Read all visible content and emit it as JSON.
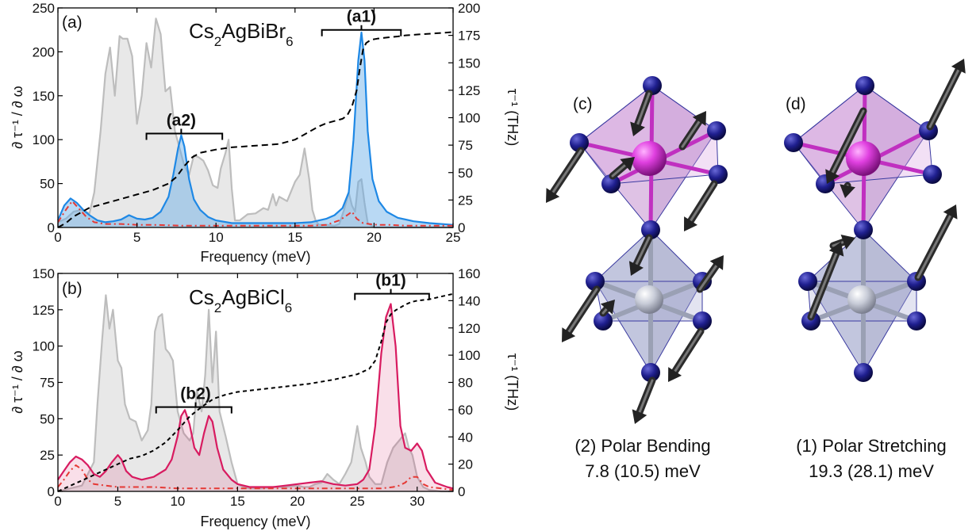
{
  "chart_data": [
    {
      "type": "area",
      "panel_label": "(a)",
      "title_base": "Cs",
      "title_sub1": "2",
      "title_mid": "AgBiBr",
      "title_sub2": "6",
      "xlabel": "Frequency (meV)",
      "ylabel_left": "∂ τ⁻¹ / ∂ ω",
      "ylabel_right": "τ⁻¹ (THz)",
      "xlim": [
        0,
        25
      ],
      "ylim_left": [
        0,
        250
      ],
      "ylim_right": [
        0,
        200
      ],
      "x_ticks": [
        "0",
        "5",
        "10",
        "15",
        "20",
        "25"
      ],
      "y_ticks_left": [
        "0",
        "50",
        "100",
        "150",
        "200",
        "250"
      ],
      "y_ticks_right": [
        "0",
        "25",
        "50",
        "75",
        "100",
        "125",
        "150",
        "175",
        "200"
      ],
      "annotations": [
        {
          "text": "(a1)",
          "range": [
            16.7,
            21.7
          ],
          "center": 19.2,
          "y": 225
        },
        {
          "text": "(a2)",
          "range": [
            5.6,
            10.4
          ],
          "center": 7.8,
          "y": 107
        }
      ],
      "series": [
        {
          "color": "#bdbdbd",
          "fill": "#e8e8e8",
          "x": [
            0,
            0.5,
            1.0,
            1.5,
            2.0,
            2.3,
            2.7,
            3.0,
            3.3,
            3.6,
            3.9,
            4.1,
            4.4,
            4.7,
            5.0,
            5.3,
            5.6,
            5.9,
            6.2,
            6.5,
            6.8,
            7.1,
            7.4,
            7.7,
            8.0,
            8.3,
            8.6,
            8.9,
            9.2,
            9.5,
            9.8,
            10.1,
            10.3,
            10.6,
            10.8,
            11.0,
            11.2,
            11.5,
            12.0,
            12.5,
            13.0,
            13.3,
            13.6,
            13.8,
            14.0,
            14.5,
            15.0,
            15.3,
            15.6,
            15.9,
            16.1,
            16.3,
            16.5,
            17.0,
            17.5,
            17.8,
            18.1,
            18.4,
            18.6,
            18.8,
            19.0,
            19.2,
            19.4,
            19.6,
            20.0,
            21.0,
            22,
            23,
            24,
            25
          ],
          "values": [
            6,
            10,
            18,
            20,
            16,
            40,
            110,
            175,
            205,
            150,
            218,
            215,
            215,
            195,
            118,
            150,
            210,
            182,
            238,
            220,
            155,
            160,
            110,
            90,
            70,
            60,
            82,
            80,
            76,
            65,
            48,
            45,
            67,
            85,
            100,
            44,
            8,
            8,
            15,
            16,
            22,
            20,
            38,
            25,
            35,
            30,
            52,
            60,
            90,
            55,
            20,
            8,
            3,
            3,
            2,
            4,
            20,
            40,
            25,
            18,
            52,
            55,
            28,
            5,
            0,
            0,
            0,
            0,
            0,
            0
          ]
        },
        {
          "color": "#1e88e5",
          "fill": "rgba(100,170,230,0.45)",
          "x": [
            0,
            0.4,
            0.8,
            1.2,
            1.6,
            2.0,
            2.5,
            3.0,
            3.5,
            4.0,
            4.5,
            5.0,
            5.5,
            6.0,
            6.5,
            7.0,
            7.3,
            7.6,
            7.8,
            8.0,
            8.3,
            8.6,
            9.0,
            9.5,
            10,
            11,
            12,
            13,
            14,
            15,
            16,
            17,
            17.5,
            18.0,
            18.4,
            18.7,
            19.0,
            19.2,
            19.4,
            19.6,
            19.9,
            20.3,
            20.8,
            21.5,
            22.5,
            23.5,
            25
          ],
          "values": [
            8,
            25,
            33,
            28,
            20,
            14,
            8,
            6,
            7,
            9,
            14,
            10,
            9,
            11,
            18,
            35,
            60,
            90,
            105,
            92,
            55,
            32,
            20,
            12,
            8,
            5,
            5,
            5,
            5,
            5,
            6,
            10,
            14,
            22,
            40,
            100,
            190,
            222,
            190,
            110,
            55,
            30,
            18,
            11,
            7,
            5,
            3
          ]
        },
        {
          "color": "#e53935",
          "dash": "7,4,2,4",
          "x": [
            0,
            0.5,
            0.9,
            1.3,
            1.8,
            2.3,
            3,
            4,
            5,
            6,
            8,
            10,
            12,
            14,
            16,
            17,
            17.8,
            18.3,
            18.6,
            18.9,
            19.3,
            19.7,
            20.2,
            21,
            22,
            25
          ],
          "values": [
            6,
            20,
            30,
            22,
            12,
            6,
            4,
            4,
            3,
            3,
            2,
            2,
            2,
            2,
            2,
            3,
            8,
            14,
            18,
            10,
            5,
            4,
            3,
            3,
            2,
            2
          ]
        },
        {
          "color": "#000000",
          "dash": "8,5",
          "axis": "right",
          "x": [
            0,
            0.5,
            1.0,
            1.5,
            2.0,
            3,
            4,
            5,
            6,
            7,
            7.5,
            8,
            8.5,
            9,
            10,
            11,
            12,
            13,
            14,
            15,
            15.5,
            16,
            16.5,
            17,
            17.5,
            18,
            18.3,
            18.6,
            18.9,
            19.1,
            19.3,
            19.5,
            19.8,
            20.2,
            20.8,
            21.5,
            22,
            23,
            24,
            25
          ],
          "values": [
            0,
            4,
            10,
            14,
            18,
            22,
            26,
            30,
            34,
            40,
            46,
            56,
            64,
            68,
            71,
            73,
            74,
            75,
            76,
            80,
            84,
            88,
            92,
            95,
            97,
            99,
            102,
            110,
            125,
            145,
            162,
            168,
            171,
            172,
            173,
            174,
            175,
            176,
            177,
            178
          ]
        }
      ]
    },
    {
      "type": "area",
      "panel_label": "(b)",
      "title_base": "Cs",
      "title_sub1": "2",
      "title_mid": "AgBiCl",
      "title_sub2": "6",
      "xlabel": "Frequency (meV)",
      "ylabel_left": "∂ τ⁻¹ / ∂ ω",
      "ylabel_right": "τ⁻¹ (THz)",
      "xlim": [
        0,
        33
      ],
      "ylim_left": [
        0,
        150
      ],
      "ylim_right": [
        0,
        160
      ],
      "x_ticks": [
        "0",
        "5",
        "10",
        "15",
        "20",
        "25",
        "30"
      ],
      "y_ticks_left": [
        "0",
        "25",
        "50",
        "75",
        "100",
        "125",
        "150"
      ],
      "y_ticks_right": [
        "0",
        "20",
        "40",
        "60",
        "80",
        "100",
        "120",
        "140",
        "160"
      ],
      "annotations": [
        {
          "text": "(b1)",
          "range": [
            24.8,
            31.0
          ],
          "center": 27.8,
          "y": 136
        },
        {
          "text": "(b2)",
          "range": [
            8.2,
            14.5
          ],
          "center": 11.5,
          "y": 58
        }
      ],
      "series": [
        {
          "color": "#bdbdbd",
          "fill": "#e8e8e8",
          "x": [
            0,
            1,
            2,
            3,
            3.3,
            3.7,
            4.0,
            4.3,
            4.6,
            5.0,
            5.3,
            5.6,
            6.0,
            6.5,
            7.0,
            7.5,
            7.8,
            8.1,
            8.4,
            8.7,
            9.0,
            9.3,
            9.6,
            10,
            10.5,
            11,
            11.3,
            11.6,
            12,
            12.3,
            12.6,
            12.9,
            13.2,
            13.5,
            14,
            14.5,
            15,
            15.5,
            16,
            17,
            18,
            19,
            20,
            20.5,
            21,
            21.5,
            22,
            22.5,
            23,
            23.5,
            24,
            24.5,
            25,
            25.3,
            25.7,
            26,
            26.5,
            27,
            27.5,
            28,
            28.5,
            29,
            29.3,
            29.6,
            30,
            30.5,
            31,
            32,
            33
          ],
          "values": [
            0,
            2,
            4,
            20,
            60,
            105,
            135,
            112,
            125,
            90,
            85,
            60,
            50,
            48,
            35,
            42,
            60,
            110,
            120,
            122,
            98,
            95,
            90,
            55,
            40,
            35,
            40,
            70,
            55,
            80,
            125,
            75,
            110,
            55,
            38,
            20,
            5,
            3,
            2,
            2,
            3,
            3,
            4,
            3,
            3,
            5,
            6,
            12,
            8,
            5,
            12,
            20,
            45,
            30,
            20,
            10,
            5,
            5,
            20,
            30,
            35,
            40,
            30,
            25,
            10,
            3,
            1,
            0,
            0
          ]
        },
        {
          "color": "#d81b60",
          "fill": "rgba(216,27,96,0.14)",
          "x": [
            0,
            0.5,
            1.0,
            1.5,
            2.0,
            2.5,
            3.0,
            3.5,
            4.0,
            4.5,
            5.0,
            5.3,
            5.7,
            6.2,
            7,
            8,
            9,
            9.5,
            10,
            10.3,
            10.6,
            11.0,
            11.4,
            11.8,
            12.2,
            12.6,
            12.9,
            13.3,
            13.8,
            14.5,
            15,
            16,
            17,
            18,
            19,
            20,
            21,
            22,
            23,
            24,
            25,
            25.5,
            26,
            26.5,
            27.0,
            27.4,
            27.8,
            28.2,
            28.6,
            29.0,
            29.5,
            30.0,
            30.4,
            30.8,
            31.5,
            32.5,
            33
          ],
          "values": [
            8,
            14,
            20,
            24,
            22,
            18,
            12,
            10,
            14,
            20,
            25,
            22,
            14,
            10,
            8,
            10,
            15,
            22,
            38,
            52,
            56,
            46,
            30,
            25,
            40,
            52,
            48,
            30,
            15,
            8,
            5,
            3,
            3,
            3,
            4,
            5,
            6,
            7,
            5,
            4,
            5,
            8,
            15,
            45,
            95,
            120,
            129,
            100,
            45,
            30,
            28,
            33,
            28,
            15,
            6,
            3,
            2
          ]
        },
        {
          "color": "#e53935",
          "dash": "7,4,2,4",
          "x": [
            0,
            0.5,
            1.0,
            1.5,
            2.0,
            2.5,
            3.0,
            4,
            5,
            6,
            8,
            10,
            12,
            14,
            16,
            18,
            20,
            22,
            24,
            26,
            27,
            28,
            28.5,
            29,
            29.5,
            30,
            30.5,
            31,
            32,
            33
          ],
          "values": [
            3,
            8,
            14,
            18,
            15,
            8,
            5,
            4,
            3,
            3,
            3,
            2,
            2,
            2,
            2,
            2,
            2,
            2,
            2,
            2,
            2,
            3,
            4,
            6,
            10,
            10,
            5,
            3,
            2,
            1
          ]
        },
        {
          "color": "#000000",
          "dash": "5,4",
          "axis": "right",
          "x": [
            0,
            1,
            2,
            3,
            4,
            5,
            6,
            7,
            8,
            9,
            10,
            11,
            12,
            13,
            14,
            15,
            17,
            19,
            21,
            23,
            25,
            25.5,
            26,
            26.5,
            27,
            27.4,
            27.8,
            28.2,
            28.6,
            29,
            29.5,
            30,
            31,
            32,
            33
          ],
          "values": [
            0,
            4,
            8,
            12,
            16,
            20,
            24,
            26,
            30,
            36,
            45,
            55,
            62,
            68,
            71,
            73,
            75,
            77,
            79,
            82,
            86,
            88,
            90,
            96,
            110,
            124,
            130,
            133,
            135,
            137,
            139,
            140,
            141,
            143,
            145
          ]
        }
      ]
    }
  ],
  "structures": [
    {
      "label": "(c)",
      "caption_line1": "(2) Polar Bending",
      "caption_line2": "7.8 (10.5) meV"
    },
    {
      "label": "(d)",
      "caption_line1": "(1) Polar Stretching",
      "caption_line2": "19.3 (28.1) meV"
    }
  ],
  "colors": {
    "silver_phonon": "#bdbdbd",
    "blue_mode": "#1e88e5",
    "magenta_mode": "#d81b60",
    "red_dashdot": "#e53935",
    "octahedron_top": "#c58fd0",
    "octahedron_bottom": "#9aa0c8",
    "atom_blue": "#1a1a80",
    "atom_magenta": "#d030d0",
    "atom_grey": "#c0c4d0",
    "arrow": "#333333"
  }
}
